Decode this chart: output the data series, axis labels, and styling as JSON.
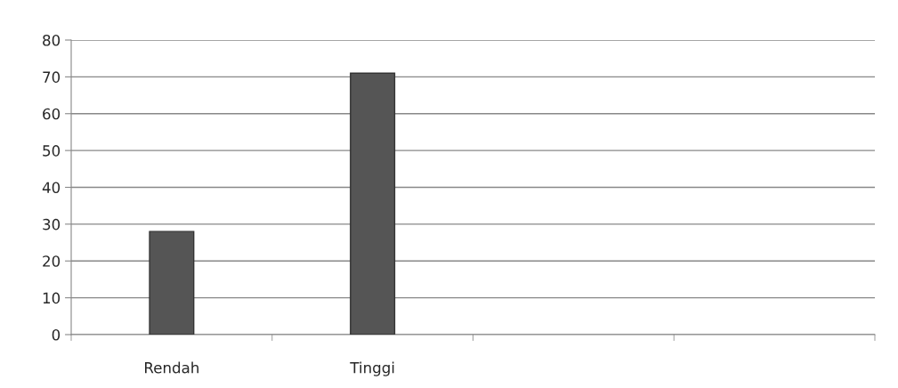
{
  "chart_data": {
    "type": "bar",
    "categories": [
      "Rendah",
      "Tinggi",
      null,
      null
    ],
    "values": [
      28,
      71,
      null,
      null
    ],
    "color": "#555555",
    "ylim": [
      0,
      80
    ],
    "yticks": [
      0,
      10,
      20,
      30,
      40,
      50,
      60,
      70,
      80
    ],
    "grid": "y",
    "legend": false
  }
}
